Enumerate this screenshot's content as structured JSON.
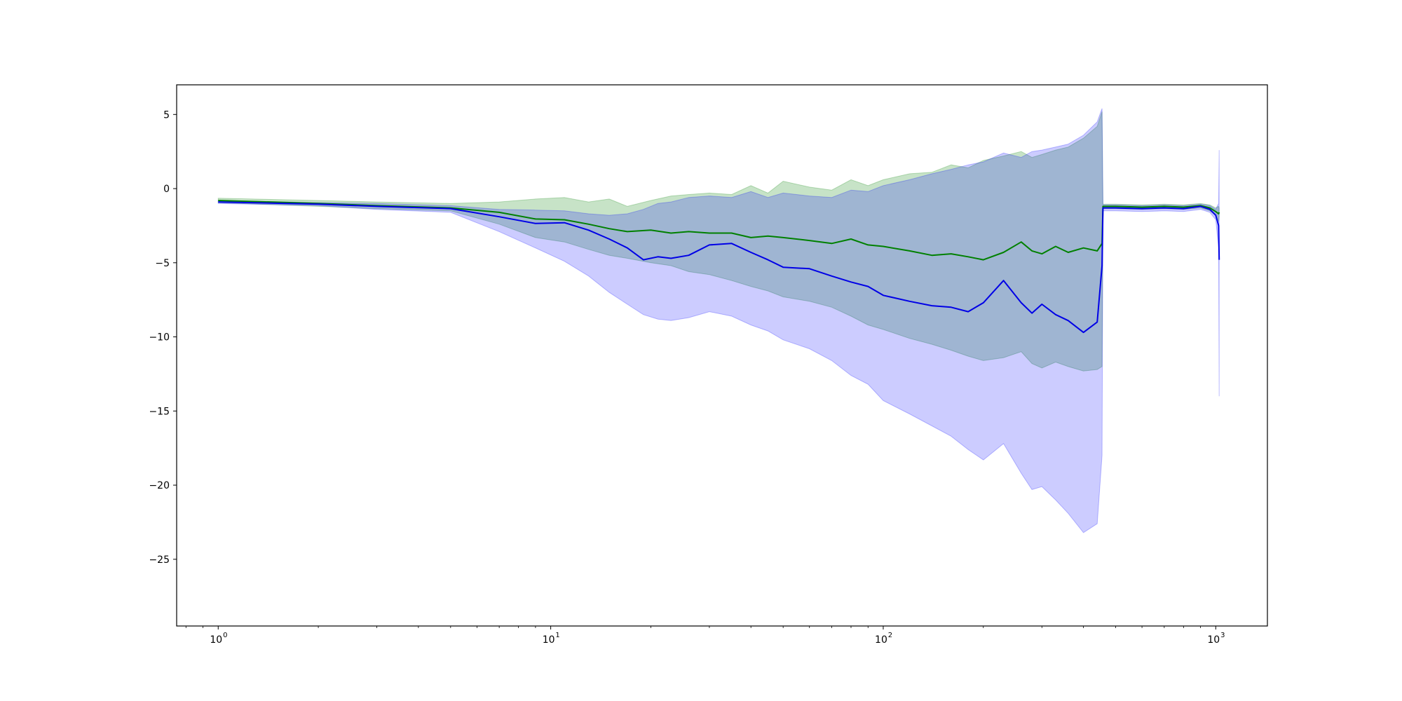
{
  "chart_data": {
    "type": "line",
    "title": "",
    "xlabel": "",
    "ylabel": "",
    "xscale": "log",
    "xlim": [
      0.75,
      1430
    ],
    "ylim": [
      -29.5,
      7.0
    ],
    "grid": false,
    "legend": "none",
    "x_ticks": [
      {
        "base": "10",
        "exp": "0",
        "value": 1
      },
      {
        "base": "10",
        "exp": "1",
        "value": 10
      },
      {
        "base": "10",
        "exp": "2",
        "value": 100
      },
      {
        "base": "10",
        "exp": "3",
        "value": 1000
      }
    ],
    "y_ticks": [
      {
        "label": "5",
        "value": 5
      },
      {
        "label": "0",
        "value": 0
      },
      {
        "label": "−5",
        "value": -5
      },
      {
        "label": "−10",
        "value": -10
      },
      {
        "label": "−15",
        "value": -15
      },
      {
        "label": "−20",
        "value": -20
      },
      {
        "label": "−25",
        "value": -25
      }
    ],
    "series": [
      {
        "color": "#008000",
        "band_color": "#008000",
        "band_opacity": 0.22,
        "x": [
          1,
          2,
          3,
          5,
          7,
          9,
          11,
          13,
          15,
          17,
          20,
          23,
          26,
          30,
          35,
          40,
          45,
          50,
          60,
          70,
          80,
          90,
          100,
          120,
          140,
          160,
          180,
          200,
          230,
          260,
          280,
          300,
          330,
          360,
          400,
          440,
          455,
          458,
          500,
          600,
          700,
          800,
          900,
          960,
          1000,
          1020,
          1024
        ],
        "y": [
          -0.8,
          -1.0,
          -1.15,
          -1.3,
          -1.6,
          -2.05,
          -2.1,
          -2.4,
          -2.7,
          -2.9,
          -2.8,
          -3.0,
          -2.9,
          -3.0,
          -3.0,
          -3.3,
          -3.2,
          -3.3,
          -3.5,
          -3.7,
          -3.4,
          -3.8,
          -3.9,
          -4.2,
          -4.5,
          -4.4,
          -4.6,
          -4.8,
          -4.3,
          -3.6,
          -4.2,
          -4.4,
          -3.9,
          -4.3,
          -4.0,
          -4.2,
          -3.7,
          -1.2,
          -1.2,
          -1.25,
          -1.2,
          -1.25,
          -1.15,
          -1.3,
          -1.55,
          -1.7,
          -1.6
        ],
        "upper": [
          -0.65,
          -0.8,
          -0.9,
          -1.0,
          -0.9,
          -0.7,
          -0.6,
          -0.9,
          -0.7,
          -1.2,
          -0.8,
          -0.5,
          -0.4,
          -0.3,
          -0.4,
          0.2,
          -0.3,
          0.5,
          0.1,
          -0.1,
          0.6,
          0.2,
          0.6,
          1.0,
          1.1,
          1.6,
          1.4,
          1.9,
          2.2,
          2.5,
          2.1,
          2.3,
          2.6,
          2.8,
          3.4,
          4.2,
          5.2,
          -1.05,
          -1.05,
          -1.1,
          -1.05,
          -1.1,
          -1.0,
          -1.1,
          -1.3,
          -1.2,
          -1.3
        ],
        "lower": [
          -0.95,
          -1.2,
          -1.35,
          -1.5,
          -2.4,
          -3.3,
          -3.6,
          -4.1,
          -4.5,
          -4.7,
          -5.0,
          -5.2,
          -5.6,
          -5.8,
          -6.2,
          -6.6,
          -6.9,
          -7.3,
          -7.6,
          -8.0,
          -8.6,
          -9.2,
          -9.5,
          -10.1,
          -10.5,
          -10.9,
          -11.3,
          -11.6,
          -11.4,
          -11.0,
          -11.8,
          -12.1,
          -11.7,
          -12.0,
          -12.3,
          -12.2,
          -12.0,
          -1.35,
          -1.35,
          -1.4,
          -1.35,
          -1.4,
          -1.3,
          -1.5,
          -1.8,
          -2.2,
          -1.9
        ]
      },
      {
        "color": "#0000e6",
        "band_color": "#0000ff",
        "band_opacity": 0.2,
        "x": [
          1,
          2,
          3,
          5,
          7,
          9,
          11,
          13,
          15,
          17,
          19,
          21,
          23,
          26,
          30,
          35,
          40,
          45,
          50,
          60,
          70,
          80,
          90,
          100,
          120,
          140,
          160,
          180,
          200,
          230,
          260,
          280,
          300,
          330,
          360,
          400,
          440,
          455,
          458,
          500,
          600,
          700,
          800,
          900,
          960,
          1000,
          1020,
          1024
        ],
        "y": [
          -0.9,
          -1.05,
          -1.2,
          -1.35,
          -1.9,
          -2.35,
          -2.3,
          -2.8,
          -3.4,
          -4.0,
          -4.8,
          -4.6,
          -4.7,
          -4.5,
          -3.8,
          -3.7,
          -4.3,
          -4.8,
          -5.3,
          -5.4,
          -5.9,
          -6.3,
          -6.6,
          -7.2,
          -7.6,
          -7.9,
          -8.0,
          -8.3,
          -7.7,
          -6.2,
          -7.7,
          -8.4,
          -7.8,
          -8.5,
          -8.9,
          -9.7,
          -9.0,
          -5.2,
          -1.3,
          -1.3,
          -1.35,
          -1.3,
          -1.35,
          -1.2,
          -1.4,
          -1.8,
          -2.5,
          -4.8
        ],
        "upper": [
          -0.8,
          -0.95,
          -1.0,
          -1.15,
          -1.4,
          -1.45,
          -1.5,
          -1.7,
          -1.8,
          -1.7,
          -1.4,
          -1.0,
          -0.9,
          -0.6,
          -0.5,
          -0.6,
          -0.2,
          -0.6,
          -0.3,
          -0.5,
          -0.6,
          -0.1,
          -0.2,
          0.2,
          0.6,
          1.0,
          1.3,
          1.6,
          1.8,
          2.4,
          2.1,
          2.5,
          2.6,
          2.8,
          3.0,
          3.6,
          4.5,
          5.4,
          -1.1,
          -1.1,
          -1.15,
          -1.1,
          -1.15,
          -1.05,
          -1.15,
          -1.4,
          -1.0,
          2.6
        ],
        "lower": [
          -1.0,
          -1.15,
          -1.4,
          -1.6,
          -2.9,
          -4.0,
          -4.9,
          -5.9,
          -7.0,
          -7.8,
          -8.5,
          -8.8,
          -8.9,
          -8.7,
          -8.3,
          -8.6,
          -9.2,
          -9.6,
          -10.2,
          -10.8,
          -11.6,
          -12.6,
          -13.2,
          -14.3,
          -15.2,
          -16.0,
          -16.7,
          -17.6,
          -18.3,
          -17.2,
          -19.2,
          -20.3,
          -20.1,
          -21.0,
          -21.9,
          -23.2,
          -22.6,
          -18.0,
          -1.5,
          -1.5,
          -1.55,
          -1.5,
          -1.55,
          -1.4,
          -1.6,
          -2.1,
          -4.0,
          -14.0
        ]
      }
    ]
  }
}
